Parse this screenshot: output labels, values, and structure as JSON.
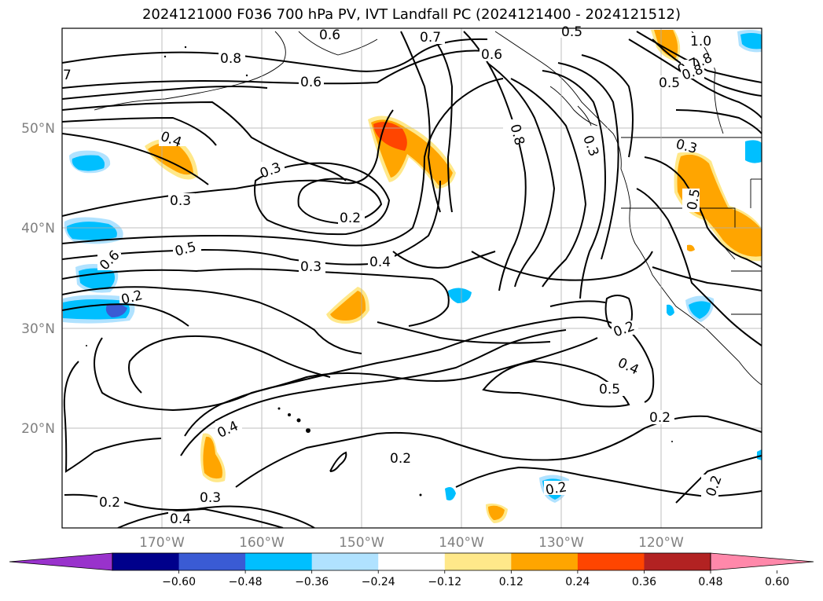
{
  "title": "2024121000 F036 700 hPa PV, IVT Landfall PC (2024121400 - 2024121512)",
  "lat_labels": [
    "50°N",
    "40°N",
    "30°N",
    "20°N"
  ],
  "lon_labels": [
    "170°W",
    "160°W",
    "150°W",
    "140°W",
    "130°W",
    "120°W"
  ],
  "contour_labels": [
    "0.6",
    "0.7",
    "0.5",
    "1.0",
    "0.8",
    "0.7",
    "0.8",
    "0.5",
    "0.6",
    "7",
    "0.8",
    "0.6",
    "0.4",
    "0.3",
    "0.3",
    "0.8",
    "0.3",
    "0.5",
    "0.2",
    "0.5",
    "0.3",
    "0.4",
    "0.6",
    "0.2",
    "0.3",
    "0.2",
    "0.4",
    "0.5",
    "0.2",
    "0.4",
    "0.2",
    "0.2",
    "0.3",
    "0.2",
    "0.4",
    "0.2"
  ],
  "colorbar": {
    "ticks": [
      "−0.60",
      "−0.48",
      "−0.36",
      "−0.24",
      "−0.12",
      "0.12",
      "0.24",
      "0.36",
      "0.48",
      "0.60"
    ],
    "colors": [
      "#9932cc",
      "#00008b",
      "#3a5bd4",
      "#00bfff",
      "#b0e2ff",
      "#ffffff",
      "#ffe88a",
      "#ffa500",
      "#ff4500",
      "#b22222",
      "#ff88aa"
    ]
  }
}
